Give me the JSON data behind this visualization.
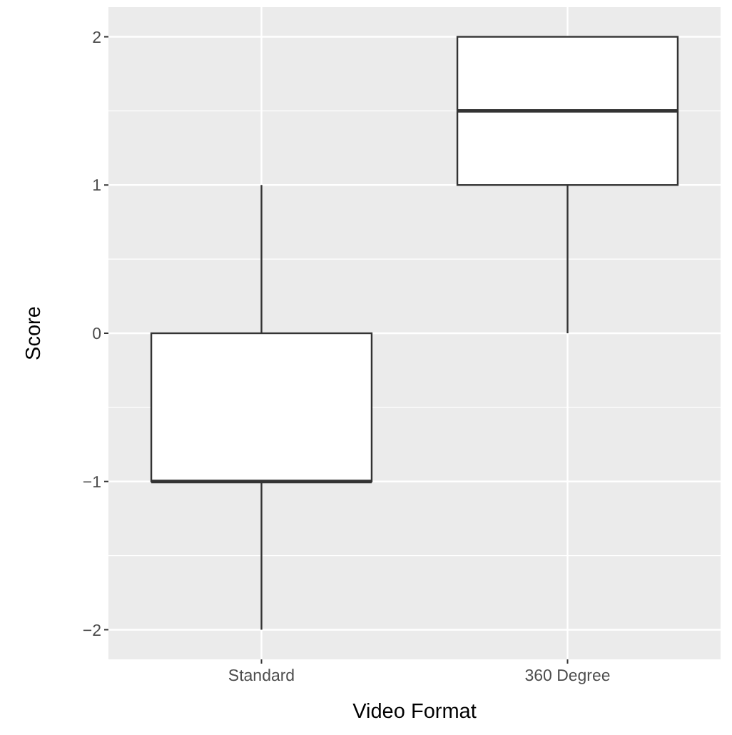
{
  "chart_data": {
    "type": "box",
    "xlabel": "Video Format",
    "ylabel": "Score",
    "categories": [
      "Standard",
      "360 Degree"
    ],
    "boxes": [
      {
        "low": -2,
        "q1": -1,
        "median": -1,
        "q3": 0,
        "high": 1
      },
      {
        "low": 0,
        "q1": 1,
        "median": 1.5,
        "q3": 2,
        "high": 2
      }
    ],
    "ylim": [
      -2.2,
      2.2
    ],
    "yticks": [
      -2,
      -1,
      0,
      1,
      2
    ],
    "grid": true
  }
}
